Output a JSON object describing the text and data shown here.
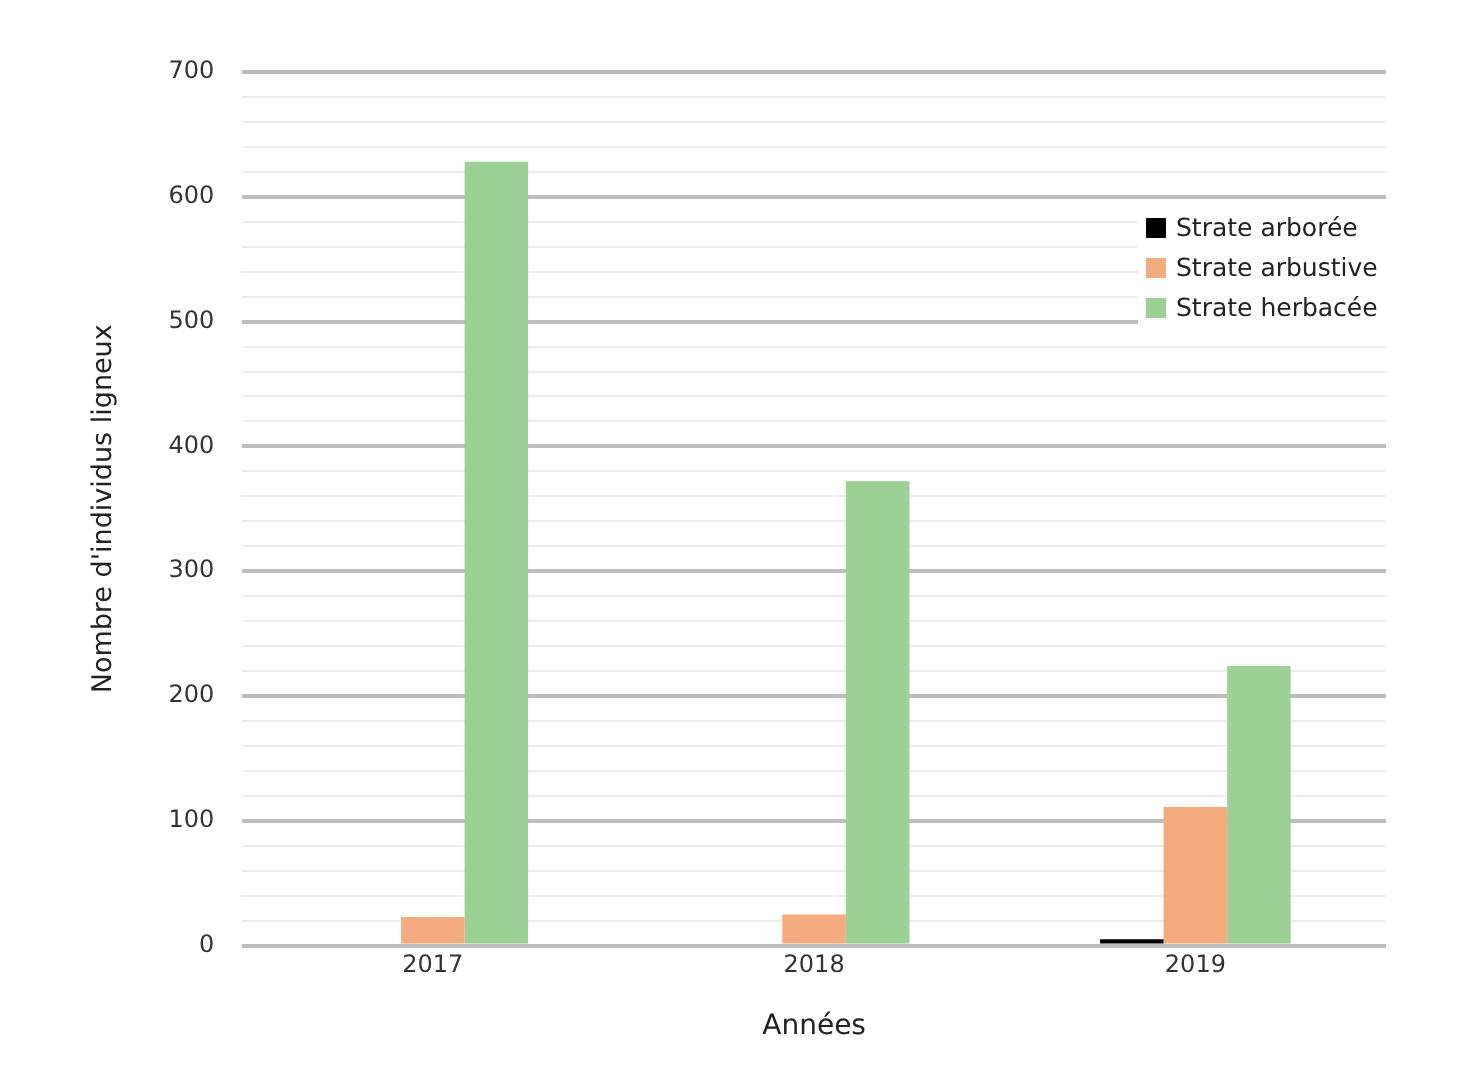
{
  "chart_data": {
    "type": "bar",
    "xlabel": "Années",
    "ylabel": "Nombre d'individus ligneux",
    "categories": [
      "2017",
      "2018",
      "2019"
    ],
    "series": [
      {
        "name": "Strate arborée",
        "color": "#000000",
        "values": [
          0,
          0,
          5
        ]
      },
      {
        "name": "Strate arbustive",
        "color": "#f4ab80",
        "values": [
          23,
          25,
          111
        ]
      },
      {
        "name": "Strate herbacée",
        "color": "#9bd194",
        "values": [
          628,
          372,
          224
        ]
      }
    ],
    "ylim": [
      0,
      700
    ],
    "yticks": [
      0,
      {
        "value": 20,
        "label": null
      },
      {
        "value": 40,
        "label": null
      },
      {
        "value": 60,
        "label": null
      },
      {
        "value": 80,
        "label": null
      },
      100,
      {
        "value": 120,
        "label": null
      },
      {
        "value": 140,
        "label": null
      },
      {
        "value": 160,
        "label": null
      },
      {
        "value": 180,
        "label": null
      },
      200,
      {
        "value": 220,
        "label": null
      },
      {
        "value": 240,
        "label": null
      },
      {
        "value": 260,
        "label": null
      },
      {
        "value": 280,
        "label": null
      },
      300,
      {
        "value": 320,
        "label": null
      },
      {
        "value": 340,
        "label": null
      },
      {
        "value": 360,
        "label": null
      },
      {
        "value": 380,
        "label": null
      },
      400,
      {
        "value": 420,
        "label": null
      },
      {
        "value": 440,
        "label": null
      },
      {
        "value": 460,
        "label": null
      },
      {
        "value": 480,
        "label": null
      },
      500,
      {
        "value": 520,
        "label": null
      },
      {
        "value": 540,
        "label": null
      },
      {
        "value": 560,
        "label": null
      },
      {
        "value": 580,
        "label": null
      },
      600,
      {
        "value": 620,
        "label": null
      },
      {
        "value": 640,
        "label": null
      },
      {
        "value": 660,
        "label": null
      },
      {
        "value": 680,
        "label": null
      },
      700
    ],
    "grid": "y",
    "legend": "top right"
  }
}
